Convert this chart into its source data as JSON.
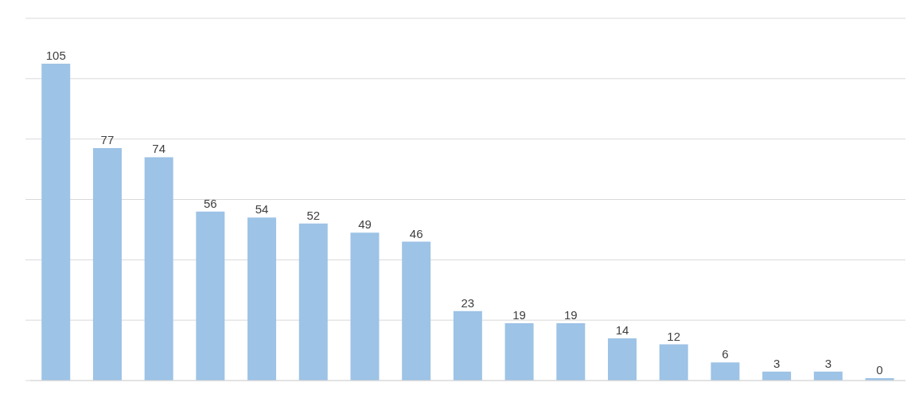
{
  "chart_data": {
    "type": "bar",
    "categories": [
      null,
      null,
      null,
      null,
      null,
      null,
      null,
      null,
      null,
      null,
      null,
      null,
      null,
      null,
      null,
      null,
      null
    ],
    "values": [
      105,
      77,
      74,
      56,
      54,
      52,
      49,
      46,
      23,
      19,
      19,
      14,
      12,
      6,
      3,
      3,
      0
    ],
    "color": "#9dc3e6",
    "ylim": [
      0,
      120
    ],
    "yticks": [
      {
        "value": 0,
        "label": null
      },
      {
        "value": 20,
        "label": null
      },
      {
        "value": 40,
        "label": null
      },
      {
        "value": 60,
        "label": null
      },
      {
        "value": 80,
        "label": null
      },
      {
        "value": 100,
        "label": null
      },
      {
        "value": 120,
        "label": null
      }
    ],
    "grid": "y",
    "data_labels": true
  }
}
